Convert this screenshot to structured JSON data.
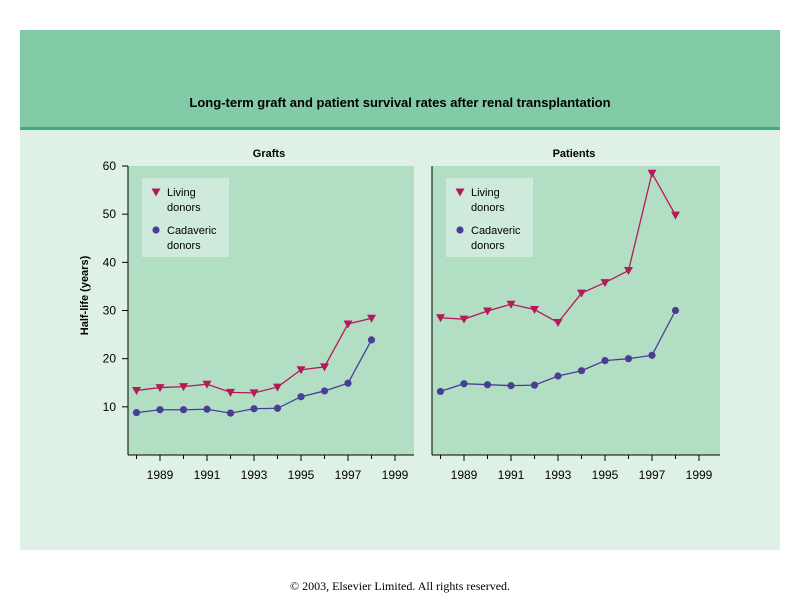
{
  "title": "Long-term graft and patient survival rates after renal transplantation",
  "copyright": "© 2003, Elsevier Limited. All rights reserved.",
  "colors": {
    "header_bg": "#82cba6",
    "header_rule": "#3faa80",
    "figure_bg": "#dff0e6",
    "plot_bg": "#b2dfc4",
    "legend_bg": "#cdeadb",
    "living": "#b5195b",
    "cadaveric": "#4a3d96"
  },
  "chart_data": [
    {
      "type": "line",
      "title": "Grafts",
      "ylabel": "Half-life (years)",
      "xlabel": "",
      "ylim": [
        0,
        60
      ],
      "xlim": [
        1987.5,
        2000
      ],
      "yticks": [
        10,
        20,
        30,
        40,
        50,
        60
      ],
      "xticks": [
        1989,
        1991,
        1993,
        1995,
        1997,
        1999
      ],
      "grid": false,
      "legend": "top-left",
      "x": [
        1988,
        1989,
        1990,
        1991,
        1992,
        1993,
        1994,
        1995,
        1996,
        1997,
        1998
      ],
      "series": [
        {
          "name": "Living donors",
          "marker": "triangle-down",
          "color": "#b5195b",
          "values": [
            13.4,
            14.0,
            14.2,
            14.7,
            13.0,
            12.9,
            14.1,
            17.7,
            18.3,
            27.2,
            28.4
          ]
        },
        {
          "name": "Cadaveric donors",
          "marker": "circle",
          "color": "#4a3d96",
          "values": [
            8.8,
            9.4,
            9.4,
            9.5,
            8.7,
            9.6,
            9.7,
            12.1,
            13.3,
            14.9,
            23.9
          ]
        }
      ]
    },
    {
      "type": "line",
      "title": "Patients",
      "ylabel": "",
      "xlabel": "",
      "ylim": [
        0,
        60
      ],
      "xlim": [
        1987.5,
        2000
      ],
      "yticks": [
        10,
        20,
        30,
        40,
        50,
        60
      ],
      "xticks": [
        1989,
        1991,
        1993,
        1995,
        1997,
        1999
      ],
      "grid": false,
      "legend": "top-left",
      "x": [
        1988,
        1989,
        1990,
        1991,
        1992,
        1993,
        1994,
        1995,
        1996,
        1997,
        1998
      ],
      "series": [
        {
          "name": "Living donors",
          "marker": "triangle-down",
          "color": "#b5195b",
          "values": [
            28.5,
            28.2,
            29.9,
            31.3,
            30.2,
            27.5,
            33.6,
            35.8,
            38.3,
            58.5,
            49.8
          ]
        },
        {
          "name": "Cadaveric donors",
          "marker": "circle",
          "color": "#4a3d96",
          "values": [
            13.2,
            14.8,
            14.6,
            14.4,
            14.5,
            16.4,
            17.5,
            19.6,
            20.0,
            20.7,
            30.0
          ]
        }
      ]
    }
  ],
  "legend_labels": {
    "living_line1": "Living",
    "living_line2": "donors",
    "cadaveric_line1": "Cadaveric",
    "cadaveric_line2": "donors"
  }
}
